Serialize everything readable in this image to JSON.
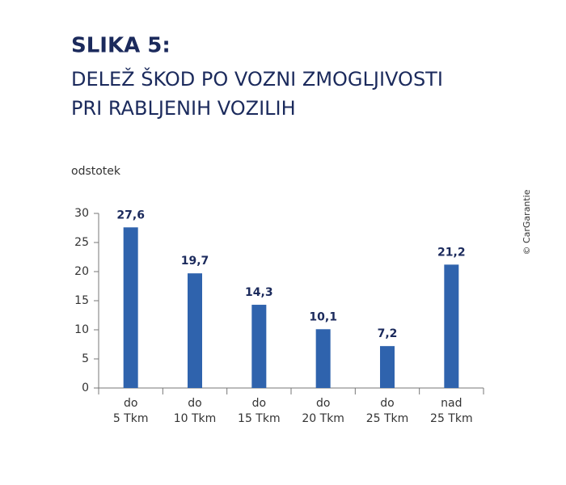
{
  "chart_data": {
    "type": "bar",
    "title": "SLIKA 5:",
    "subtitle": [
      "DELEŽ ŠKOD PO VOZNI ZMOGLJIVOSTI",
      "PRI RABLJENIH VOZILIH"
    ],
    "y_label": "odstotek",
    "source": "© CarGarantie",
    "categories": [
      [
        "do",
        "5 Tkm"
      ],
      [
        "do",
        "10 Tkm"
      ],
      [
        "do",
        "15 Tkm"
      ],
      [
        "do",
        "20 Tkm"
      ],
      [
        "do",
        "25 Tkm"
      ],
      [
        "nad",
        "25 Tkm"
      ]
    ],
    "values": [
      27.6,
      19.7,
      14.3,
      10.1,
      7.2,
      21.2
    ],
    "value_labels": [
      "27,6",
      "19,7",
      "14,3",
      "10,1",
      "7,2",
      "21,2"
    ],
    "color": "#2f63ad",
    "ylim": [
      0,
      30
    ],
    "yticks": [
      0,
      5,
      10,
      15,
      20,
      25,
      30
    ],
    "grid": false
  }
}
